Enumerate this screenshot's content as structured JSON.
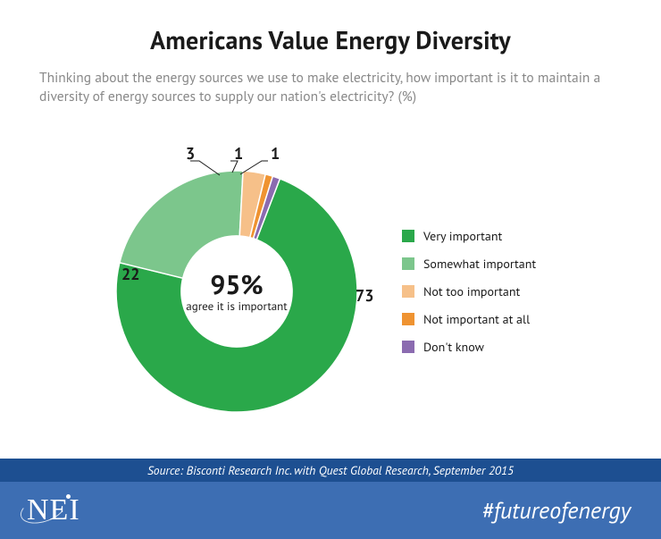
{
  "title": "Americans Value Energy Diversity",
  "subtitle": "Thinking about the energy sources we use to make electricity, how important is it to maintain a diversity of energy sources to supply our nation's electricity? (%)",
  "chart": {
    "type": "donut",
    "inner_radius_ratio": 0.46,
    "outer_radius": 135,
    "background_color": "#ffffff",
    "start_angle_deg": 21,
    "slices": [
      {
        "label": "Very important",
        "value": 73,
        "color": "#2aa84a"
      },
      {
        "label": "Somewhat important",
        "value": 22,
        "color": "#7cc68c"
      },
      {
        "label": "Not too important",
        "value": 3,
        "color": "#f6c089"
      },
      {
        "label": "Not important at all",
        "value": 1,
        "color": "#ef9331"
      },
      {
        "label": "Don't know",
        "value": 1,
        "color": "#8b6bb0"
      }
    ],
    "center_value": "95%",
    "center_caption": "agree it is important",
    "label_fontsize": 18,
    "center_value_fontsize": 30,
    "center_caption_fontsize": 13,
    "legend_fontsize": 14,
    "swatch_size": 14
  },
  "footer": {
    "source": "Source: Bisconti Research Inc. with Quest Global Research, September 2015",
    "logo_text": "NEI",
    "hashtag": "#futureofenergy",
    "source_bar_bg": "#1d4f91",
    "brand_bar_bg": "#3d6eb3",
    "text_color": "#ffffff"
  },
  "colors": {
    "title": "#1a1a1a",
    "subtitle": "#888888"
  }
}
